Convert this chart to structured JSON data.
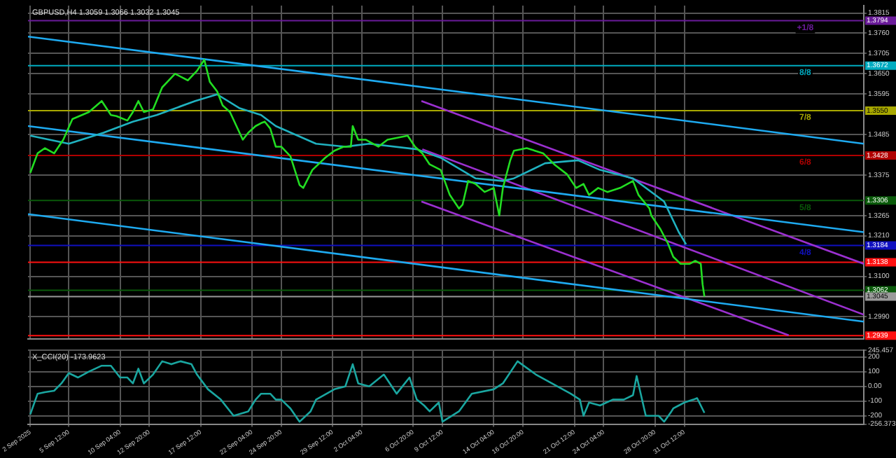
{
  "chart_data": [
    {
      "type": "line",
      "title": "GBPUSD,H4 1.3059 1.3066 1.3032 1.3045",
      "grid": true,
      "legend": false,
      "marker": "none",
      "tick_labels": "y",
      "xlim": [
        "2025-09-01T19:00",
        "2025-11-16T20:00"
      ],
      "xticks": [
        "2025-09-02T00:00",
        "2025-09-05T12:00",
        "2025-09-10T04:00",
        "2025-09-12T20:00",
        "2025-09-17T12:00",
        "2025-09-22T04:00",
        "2025-09-24T20:00",
        "2025-09-29T12:00",
        "2025-10-02T04:00",
        "2025-10-06T20:00",
        "2025-10-09T12:00",
        "2025-10-14T04:00",
        "2025-10-16T20:00",
        "2025-10-21T12:00",
        "2025-10-24T04:00",
        "2025-10-28T20:00",
        "2025-10-31T12:00"
      ],
      "ylim": [
        1.293,
        1.3835
      ],
      "yticks": [
        {
          "value": 1.299,
          "label": "1.2990"
        },
        {
          "value": 1.31,
          "label": "1.3100"
        },
        {
          "value": 1.321,
          "label": "1.3210"
        },
        {
          "value": 1.3265,
          "label": "1.3265"
        },
        {
          "value": 1.3375,
          "label": "1.3375"
        },
        {
          "value": 1.3485,
          "label": "1.3485"
        },
        {
          "value": 1.3595,
          "label": "1.3595"
        },
        {
          "value": 1.365,
          "label": "1.3650"
        },
        {
          "value": 1.3705,
          "label": "1.3705"
        },
        {
          "value": 1.376,
          "label": "1.3760"
        },
        {
          "value": 1.3815,
          "label": "1.3815"
        }
      ],
      "series": [
        {
          "color": "#22dd22",
          "x": [
            "2025-09-02T00:00",
            "2025-09-02T16:00",
            "2025-09-03T08:00",
            "2025-09-04T04:00",
            "2025-09-05T00:00",
            "2025-09-05T20:00",
            "2025-09-07T08:00",
            "2025-09-08T12:00",
            "2025-09-09T08:00",
            "2025-09-09T20:00",
            "2025-09-10T20:00",
            "2025-09-11T08:00",
            "2025-09-11T20:00",
            "2025-09-12T08:00",
            "2025-09-13T04:00",
            "2025-09-14T00:00",
            "2025-09-15T04:00",
            "2025-09-16T08:00",
            "2025-09-17T04:00",
            "2025-09-17T20:00",
            "2025-09-18T08:00",
            "2025-09-19T00:00",
            "2025-09-19T12:00",
            "2025-09-20T04:00",
            "2025-09-21T08:00",
            "2025-09-21T20:00",
            "2025-09-22T12:00",
            "2025-09-23T00:00",
            "2025-09-23T08:00",
            "2025-09-23T20:00",
            "2025-09-24T08:00",
            "2025-09-24T20:00",
            "2025-09-25T16:00",
            "2025-09-26T12:00",
            "2025-09-26T20:00",
            "2025-09-27T16:00",
            "2025-09-28T20:00",
            "2025-09-29T16:00",
            "2025-09-30T12:00",
            "2025-10-01T04:00",
            "2025-10-01T08:00",
            "2025-10-01T20:00",
            "2025-10-02T12:00",
            "2025-10-03T16:00",
            "2025-10-04T12:00",
            "2025-10-06T08:00",
            "2025-10-07T00:00",
            "2025-10-07T16:00",
            "2025-10-08T08:00",
            "2025-10-09T08:00",
            "2025-10-10T04:00",
            "2025-10-11T00:00",
            "2025-10-11T08:00",
            "2025-10-11T20:00",
            "2025-10-12T12:00",
            "2025-10-13T08:00",
            "2025-10-14T04:00",
            "2025-10-14T16:00",
            "2025-10-15T00:00",
            "2025-10-15T16:00",
            "2025-10-16T00:00",
            "2025-10-17T04:00",
            "2025-10-18T16:00",
            "2025-10-19T16:00",
            "2025-10-20T20:00",
            "2025-10-21T16:00",
            "2025-10-22T08:00",
            "2025-10-22T20:00",
            "2025-10-23T16:00",
            "2025-10-24T12:00",
            "2025-10-25T16:00",
            "2025-10-26T20:00",
            "2025-10-27T08:00",
            "2025-10-28T08:00",
            "2025-10-28T12:00",
            "2025-10-29T08:00",
            "2025-10-29T16:00",
            "2025-10-30T00:00",
            "2025-10-30T12:00",
            "2025-10-31T04:00",
            "2025-11-01T00:00",
            "2025-11-01T12:00",
            "2025-11-02T00:00",
            "2025-11-02T04:00",
            "2025-11-02T08:00"
          ],
          "values": [
            1.3381,
            1.3434,
            1.3448,
            1.3434,
            1.3471,
            1.3527,
            1.3546,
            1.3576,
            1.3538,
            1.3535,
            1.3523,
            1.3546,
            1.3576,
            1.3546,
            1.3553,
            1.3613,
            1.365,
            1.3632,
            1.3658,
            1.3688,
            1.3628,
            1.3602,
            1.3564,
            1.3546,
            1.3471,
            1.349,
            1.3508,
            1.3516,
            1.352,
            1.3501,
            1.3452,
            1.3452,
            1.3426,
            1.3348,
            1.334,
            1.3389,
            1.3422,
            1.3441,
            1.3452,
            1.3452,
            1.3508,
            1.3471,
            1.3471,
            1.3452,
            1.3471,
            1.3482,
            1.3452,
            1.3434,
            1.3404,
            1.3389,
            1.3321,
            1.3284,
            1.3295,
            1.3359,
            1.3351,
            1.3329,
            1.334,
            1.3265,
            1.334,
            1.3415,
            1.3441,
            1.3448,
            1.3434,
            1.3404,
            1.3377,
            1.334,
            1.3351,
            1.3321,
            1.334,
            1.3329,
            1.334,
            1.3359,
            1.3321,
            1.3284,
            1.3265,
            1.3228,
            1.3209,
            1.319,
            1.3153,
            1.3134,
            1.3134,
            1.3142,
            1.3134,
            1.3078,
            1.3045
          ]
        },
        {
          "color": "#20b2c0",
          "x": [
            "2025-09-02T00:00",
            "2025-09-05T12:00",
            "2025-09-08T16:00",
            "2025-09-11T08:00",
            "2025-09-13T12:00",
            "2025-09-17T00:00",
            "2025-09-19T00:00",
            "2025-09-21T00:00",
            "2025-09-23T00:00",
            "2025-09-24T08:00",
            "2025-09-28T00:00",
            "2025-09-30T16:00",
            "2025-10-02T20:00",
            "2025-10-07T04:00",
            "2025-10-09T08:00",
            "2025-10-12T12:00",
            "2025-10-15T00:00",
            "2025-10-16T00:00",
            "2025-10-18T20:00",
            "2025-10-21T20:00",
            "2025-10-23T20:00",
            "2025-10-26T20:00",
            "2025-10-29T16:00",
            "2025-10-31T00:00",
            "2025-10-31T16:00"
          ],
          "values": [
            1.3482,
            1.346,
            1.349,
            1.352,
            1.3538,
            1.3576,
            1.3594,
            1.3557,
            1.3538,
            1.3508,
            1.346,
            1.3452,
            1.346,
            1.3445,
            1.3422,
            1.3366,
            1.3359,
            1.3366,
            1.3407,
            1.3415,
            1.3389,
            1.3366,
            1.3303,
            1.322,
            1.3187
          ]
        },
        {
          "color": "#1eaaf0",
          "x": [
            "2025-09-01T19:00",
            "2025-11-16T20:00"
          ],
          "values": [
            1.3751,
            1.346
          ]
        },
        {
          "color": "#1eaaf0",
          "x": [
            "2025-09-01T19:00",
            "2025-11-16T20:00"
          ],
          "values": [
            1.3508,
            1.322
          ]
        },
        {
          "color": "#1eaaf0",
          "x": [
            "2025-09-01T19:00",
            "2025-11-16T20:00"
          ],
          "values": [
            1.3269,
            1.2977
          ]
        },
        {
          "color": "#9b30d0",
          "x": [
            "2025-10-07T14:00",
            "2025-11-16T20:00"
          ],
          "values": [
            1.3576,
            1.3134
          ]
        },
        {
          "color": "#9b30d0",
          "x": [
            "2025-10-07T16:00",
            "2025-11-16T20:00"
          ],
          "values": [
            1.3445,
            1.2996
          ]
        },
        {
          "color": "#9b30d0",
          "x": [
            "2025-10-07T14:00",
            "2025-11-10T00:00"
          ],
          "values": [
            1.3303,
            1.294
          ]
        }
      ],
      "ref_lines": [
        {
          "axis": "y",
          "value": 1.3794,
          "label": "1.3794",
          "color": "#6a1b9a"
        },
        {
          "axis": "y",
          "value": 1.3672,
          "label": "1.3672",
          "color": "#00acc1"
        },
        {
          "axis": "y",
          "value": 1.355,
          "label": "1.3550",
          "color": "#a8a800"
        },
        {
          "axis": "y",
          "value": 1.3428,
          "label": "1.3428",
          "color": "#b00000"
        },
        {
          "axis": "y",
          "value": 1.3306,
          "label": "1.3306",
          "color": "#0a5a0a"
        },
        {
          "axis": "y",
          "value": 1.3184,
          "label": "1.3184",
          "color": "#1010c0"
        },
        {
          "axis": "y",
          "value": 1.3138,
          "label": "1.3138",
          "color": "#ff1010"
        },
        {
          "axis": "y",
          "value": 1.3062,
          "label": "1.3062",
          "color": "#0a5a0a"
        },
        {
          "axis": "y",
          "value": 1.3045,
          "label": "1.3045",
          "color": "#9a9a9a"
        },
        {
          "axis": "y",
          "value": 1.2939,
          "label": "1.2939",
          "color": "#ff1010"
        }
      ],
      "annotations": [
        {
          "text": "+1/8",
          "y": 1.3794
        },
        {
          "text": "8/8",
          "y": 1.3672
        },
        {
          "text": "7/8",
          "y": 1.355
        },
        {
          "text": "6/8",
          "y": 1.3428
        },
        {
          "text": "5/8",
          "y": 1.3306
        },
        {
          "text": "4/8",
          "y": 1.3184
        }
      ]
    },
    {
      "type": "line",
      "title": "X_CCI(20) -173.9623",
      "grid": true,
      "legend": false,
      "marker": "none",
      "xlim": [
        "2025-09-01T19:00",
        "2025-11-16T20:00"
      ],
      "xticks": [
        {
          "value": "2025-09-02T00:00",
          "label": "2 Sep 2025"
        },
        {
          "value": "2025-09-05T12:00",
          "label": "5 Sep 12:00"
        },
        {
          "value": "2025-09-10T04:00",
          "label": "10 Sep 04:00"
        },
        {
          "value": "2025-09-12T20:00",
          "label": "12 Sep 20:00"
        },
        {
          "value": "2025-09-17T12:00",
          "label": "17 Sep 12:00"
        },
        {
          "value": "2025-09-22T04:00",
          "label": "22 Sep 04:00"
        },
        {
          "value": "2025-09-24T20:00",
          "label": "24 Sep 20:00"
        },
        {
          "value": "2025-09-29T12:00",
          "label": "29 Sep 12:00"
        },
        {
          "value": "2025-10-02T04:00",
          "label": "2 Oct 04:00"
        },
        {
          "value": "2025-10-06T20:00",
          "label": "6 Oct 20:00"
        },
        {
          "value": "2025-10-09T12:00",
          "label": "9 Oct 12:00"
        },
        {
          "value": "2025-10-14T04:00",
          "label": "14 Oct 04:00"
        },
        {
          "value": "2025-10-16T20:00",
          "label": "16 Oct 20:00"
        },
        {
          "value": "2025-10-21T12:00",
          "label": "21 Oct 12:00"
        },
        {
          "value": "2025-10-24T04:00",
          "label": "24 Oct 04:00"
        },
        {
          "value": "2025-10-28T20:00",
          "label": "28 Oct 20:00"
        },
        {
          "value": "2025-10-31T12:00",
          "label": "31 Oct 12:00"
        }
      ],
      "ylim": [
        -256.373,
        245.457
      ],
      "yticks": [
        -256.373,
        -200,
        -100,
        {
          "value": 0,
          "label": "0.00"
        },
        100,
        200,
        245.457
      ],
      "series": [
        {
          "color": "#1aa6a0",
          "x": [
            "2025-09-02T00:00",
            "2025-09-02T16:00",
            "2025-09-03T08:00",
            "2025-09-04T04:00",
            "2025-09-04T20:00",
            "2025-09-05T12:00",
            "2025-09-06T08:00",
            "2025-09-07T08:00",
            "2025-09-08T12:00",
            "2025-09-09T08:00",
            "2025-09-10T04:00",
            "2025-09-10T20:00",
            "2025-09-11T08:00",
            "2025-09-11T20:00",
            "2025-09-12T08:00",
            "2025-09-13T04:00",
            "2025-09-14T00:00",
            "2025-09-14T20:00",
            "2025-09-15T16:00",
            "2025-09-16T16:00",
            "2025-09-17T04:00",
            "2025-09-18T04:00",
            "2025-09-19T08:00",
            "2025-09-20T12:00",
            "2025-09-21T20:00",
            "2025-09-22T12:00",
            "2025-09-23T00:00",
            "2025-09-23T20:00",
            "2025-09-24T08:00",
            "2025-09-24T20:00",
            "2025-09-25T16:00",
            "2025-09-26T12:00",
            "2025-09-27T12:00",
            "2025-09-28T00:00",
            "2025-09-29T16:00",
            "2025-09-30T16:00",
            "2025-10-01T08:00",
            "2025-10-01T20:00",
            "2025-10-02T20:00",
            "2025-10-04T04:00",
            "2025-10-05T08:00",
            "2025-10-06T12:00",
            "2025-10-07T04:00",
            "2025-10-07T20:00",
            "2025-10-08T08:00",
            "2025-10-09T04:00",
            "2025-10-09T12:00",
            "2025-10-11T00:00",
            "2025-10-12T04:00",
            "2025-10-14T04:00",
            "2025-10-15T00:00",
            "2025-10-16T08:00",
            "2025-10-18T00:00",
            "2025-10-21T04:00",
            "2025-10-22T00:00",
            "2025-10-22T08:00",
            "2025-10-22T20:00",
            "2025-10-23T20:00",
            "2025-10-25T00:00",
            "2025-10-26T00:00",
            "2025-10-26T20:00",
            "2025-10-27T04:00",
            "2025-10-28T00:00",
            "2025-10-29T04:00",
            "2025-10-29T16:00",
            "2025-10-30T08:00",
            "2025-10-30T12:00",
            "2025-10-31T00:00",
            "2025-10-31T12:00",
            "2025-11-01T08:00",
            "2025-11-01T16:00",
            "2025-11-02T00:00",
            "2025-11-02T08:00"
          ],
          "values": [
            -190,
            -50,
            -40,
            -30,
            20,
            90,
            60,
            100,
            140,
            140,
            60,
            60,
            20,
            120,
            20,
            80,
            170,
            150,
            170,
            150,
            80,
            -20,
            -90,
            -200,
            -170,
            -90,
            -50,
            -50,
            -90,
            -90,
            -150,
            -240,
            -170,
            -90,
            -20,
            0,
            150,
            20,
            0,
            80,
            -50,
            60,
            -90,
            -130,
            -170,
            -110,
            -240,
            -170,
            -50,
            -20,
            20,
            170,
            80,
            -50,
            -90,
            -200,
            -110,
            -130,
            -90,
            -90,
            -60,
            70,
            -200,
            -200,
            -240,
            -170,
            -150,
            -130,
            -110,
            -90,
            -80,
            -130,
            -180
          ]
        }
      ]
    }
  ]
}
